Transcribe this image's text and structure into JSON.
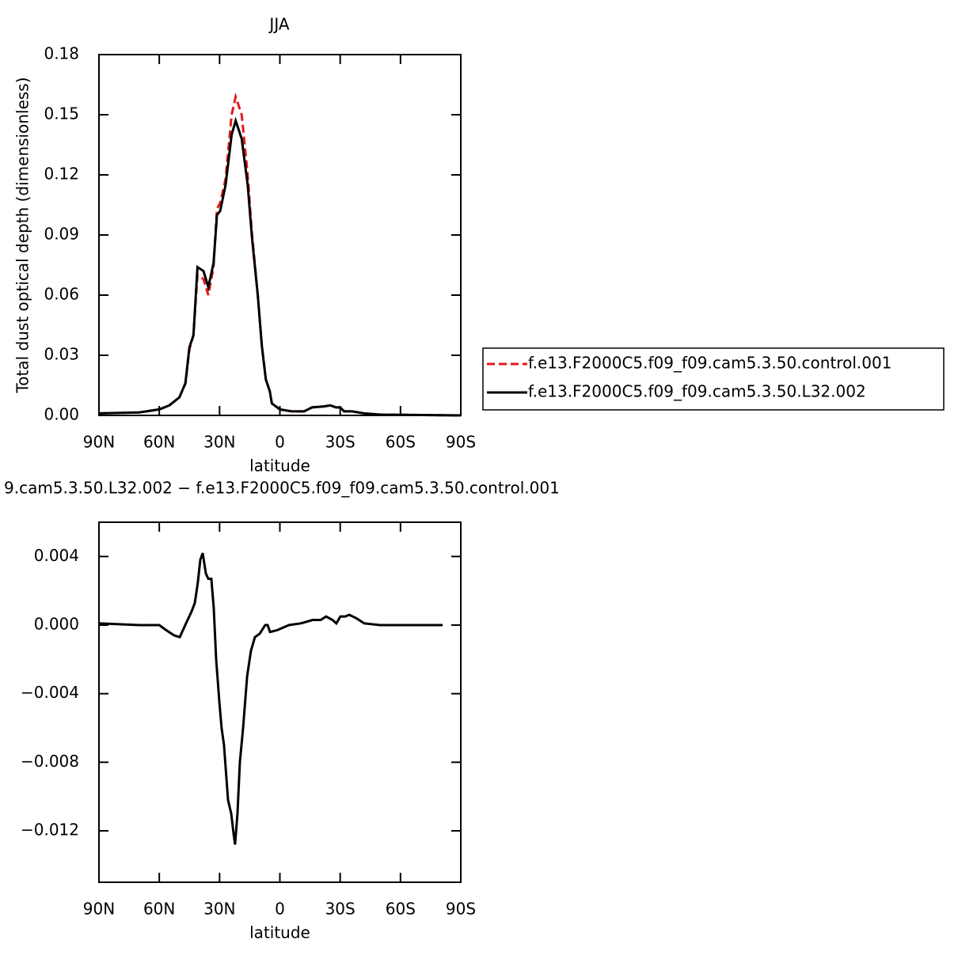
{
  "chart_data": [
    {
      "type": "line",
      "title": "JJA",
      "y_label": "Total dust optical depth (dimensionless)",
      "x_label": "latitude",
      "x": [
        90,
        70,
        60,
        55,
        50,
        47,
        45,
        43,
        41,
        38,
        35.6,
        33,
        31.3,
        29.7,
        27,
        24,
        22,
        19,
        16,
        14,
        11,
        9,
        7,
        5,
        4,
        0,
        -6,
        -12,
        -16,
        -22,
        -25,
        -28,
        -30,
        -32,
        -36,
        -42,
        -50,
        -90
      ],
      "series": [
        {
          "name": "f.e13.F2000C5.f09_f09.cam5.3.50.control.001",
          "color": "#e41a1c",
          "dashed": true,
          "values": [
            0.001,
            0.0015,
            0.003,
            0.005,
            0.009,
            0.016,
            0.033,
            0.04,
            0.07,
            0.068,
            0.06,
            0.074,
            0.103,
            0.106,
            0.118,
            0.15,
            0.159,
            0.15,
            0.12,
            0.092,
            0.06,
            0.035,
            0.018,
            0.012,
            0.006,
            0.003,
            0.002,
            0.002,
            0.004,
            0.0045,
            0.005,
            0.004,
            0.004,
            0.002,
            0.002,
            0.001,
            0.0004,
            0
          ]
        },
        {
          "name": "f.e13.F2000C5.f09_f09.cam5.3.50.L32.002",
          "color": "#000000",
          "dashed": false,
          "values": [
            0.001,
            0.0015,
            0.003,
            0.005,
            0.009,
            0.016,
            0.034,
            0.04,
            0.074,
            0.072,
            0.064,
            0.076,
            0.1,
            0.102,
            0.115,
            0.14,
            0.147,
            0.138,
            0.115,
            0.09,
            0.06,
            0.035,
            0.018,
            0.012,
            0.006,
            0.003,
            0.002,
            0.002,
            0.004,
            0.0045,
            0.005,
            0.004,
            0.004,
            0.002,
            0.002,
            0.001,
            0.0004,
            0
          ]
        }
      ],
      "xlim": [
        90,
        -90
      ],
      "xticks": [
        {
          "value": 90,
          "label": "90N"
        },
        {
          "value": 60,
          "label": "60N"
        },
        {
          "value": 30,
          "label": "30N"
        },
        0,
        {
          "value": -30,
          "label": "30S"
        },
        {
          "value": -60,
          "label": "60S"
        },
        {
          "value": -90,
          "label": "90S"
        }
      ],
      "ylim": [
        0,
        0.18
      ],
      "yticks": [
        {
          "value": 0,
          "label": "0.00"
        },
        0.03,
        0.06,
        0.09,
        0.12,
        0.15,
        0.18
      ],
      "legend": "right"
    },
    {
      "type": "line",
      "title": "9.cam5.3.50.L32.002 − f.e13.F2000C5.f09_f09.cam5.3.50.control.001",
      "x_label": "latitude",
      "x": [
        90,
        70,
        60,
        56.5,
        52.6,
        49.8,
        46.7,
        43.9,
        42.3,
        40.8,
        39.6,
        38.4,
        36.8,
        35.6,
        34.1,
        32.9,
        31.7,
        30.1,
        29,
        27.8,
        25.8,
        24.2,
        23,
        22.3,
        21.1,
        19.9,
        18.3,
        16.3,
        14.4,
        12.4,
        10,
        7.3,
        6.1,
        4.9,
        1.4,
        -4.5,
        -10.4,
        -16.3,
        -20.3,
        -23,
        -26.2,
        -28.1,
        -30.1,
        -32.5,
        -34.5,
        -38,
        -42,
        -49.8,
        -81
      ],
      "values": [
        0.0001,
        0,
        0,
        -0.0003,
        -0.0006,
        -0.0007,
        0.0001,
        0.0008,
        0.0013,
        0.0025,
        0.0038,
        0.0042,
        0.003,
        0.0027,
        0.0027,
        0.001,
        -0.002,
        -0.0045,
        -0.006,
        -0.007,
        -0.0102,
        -0.011,
        -0.0122,
        -0.0128,
        -0.011,
        -0.008,
        -0.006,
        -0.003,
        -0.0015,
        -0.0007,
        -0.0005,
        0,
        0,
        -0.0004,
        -0.0003,
        0,
        0.0001,
        0.0003,
        0.0003,
        0.0005,
        0.0003,
        0.0001,
        0.0005,
        0.0005,
        0.0006,
        0.0004,
        0.0001,
        0,
        0
      ],
      "color": "#000000",
      "xlim": [
        90,
        -90
      ],
      "xticks": [
        {
          "value": 90,
          "label": "90N"
        },
        {
          "value": 60,
          "label": "60N"
        },
        {
          "value": 30,
          "label": "30N"
        },
        0,
        {
          "value": -30,
          "label": "30S"
        },
        {
          "value": -60,
          "label": "60S"
        },
        {
          "value": -90,
          "label": "90S"
        }
      ],
      "ylim": [
        -0.015,
        0.006
      ],
      "yticks": [
        {
          "value": -0.012,
          "label": "−0.012"
        },
        {
          "value": -0.008,
          "label": "−0.008"
        },
        {
          "value": -0.004,
          "label": "−0.004"
        },
        {
          "value": 0,
          "label": "0.000"
        },
        0.004
      ]
    }
  ]
}
